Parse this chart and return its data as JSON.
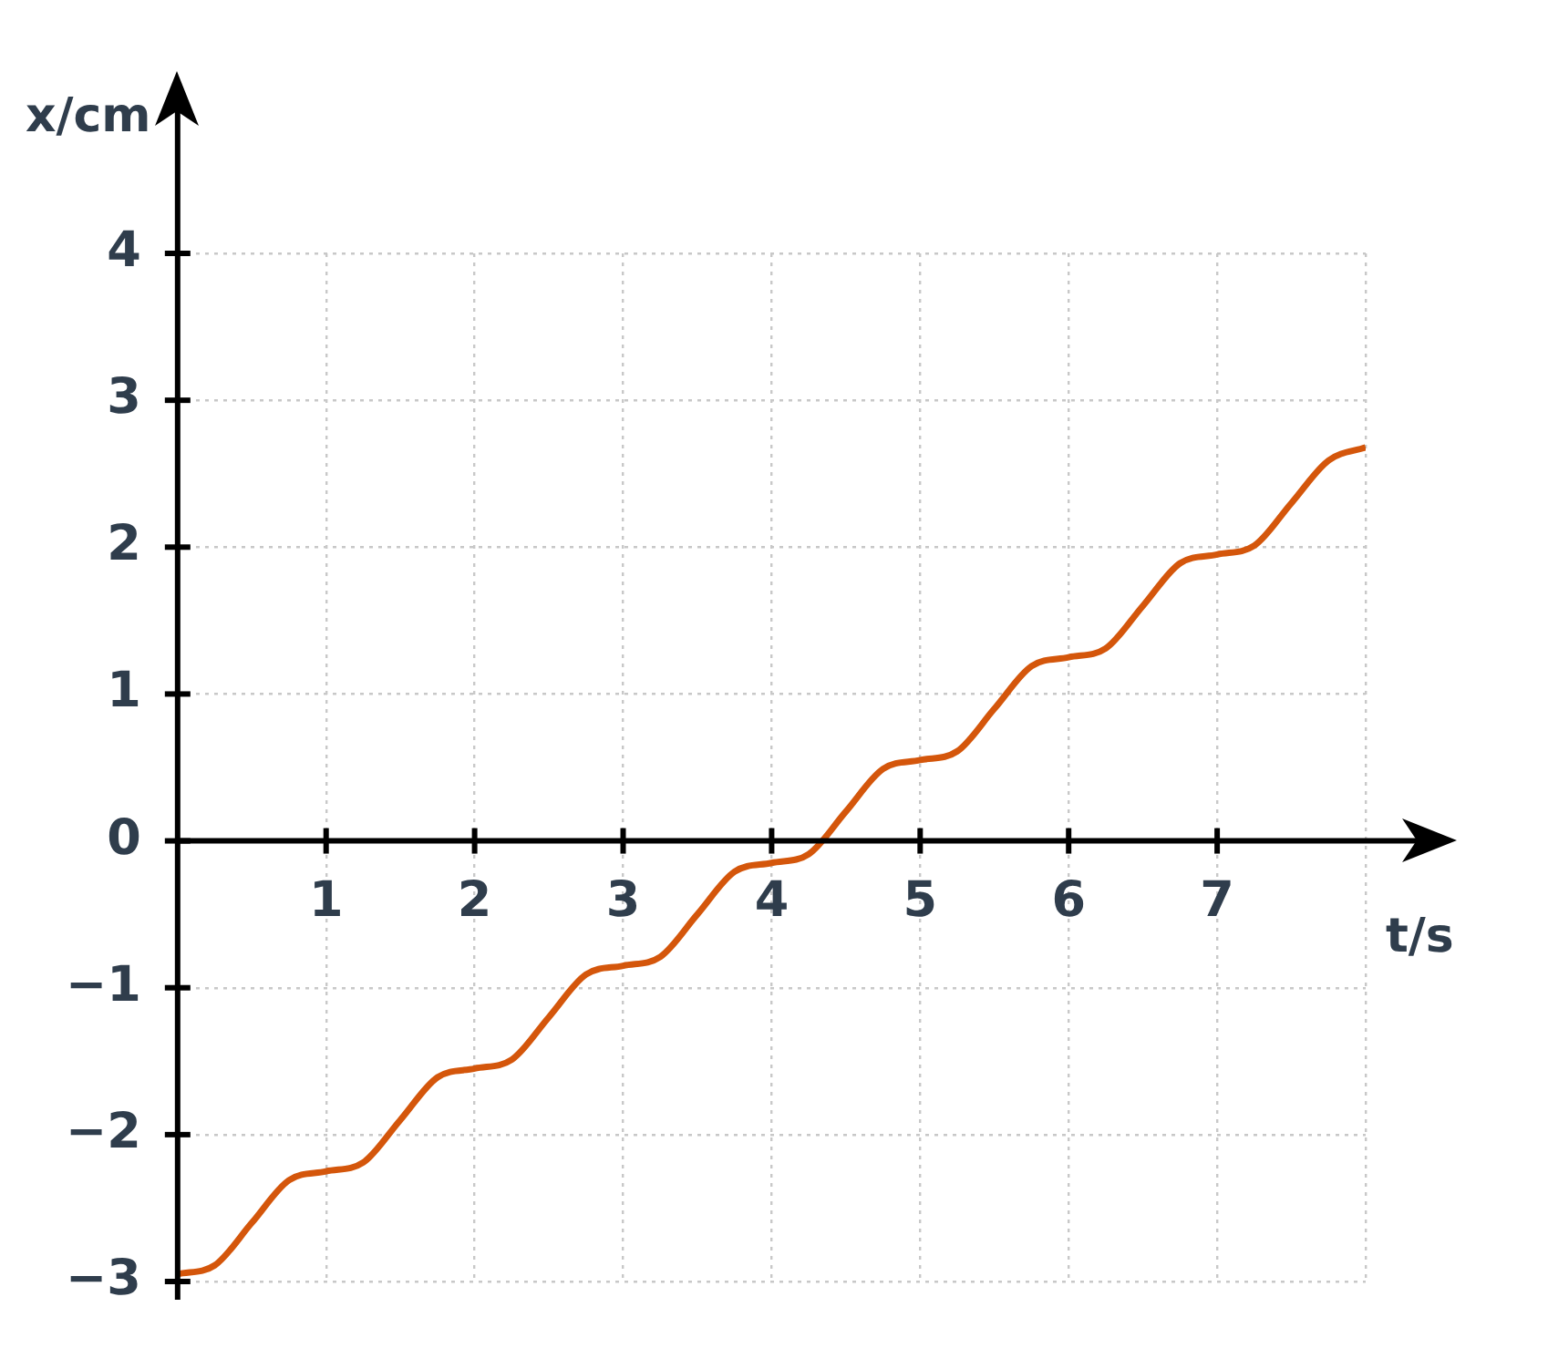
{
  "chart_data": {
    "type": "line",
    "xlabel": "t/s",
    "ylabel": "x/cm",
    "x": [
      0,
      0.25,
      0.5,
      0.75,
      1,
      1.25,
      1.5,
      1.75,
      2,
      2.25,
      2.5,
      2.75,
      3,
      3.25,
      3.5,
      3.75,
      4,
      4.25,
      4.5,
      4.75,
      5,
      5.25,
      5.5,
      5.75,
      6,
      6.25,
      6.5,
      6.75,
      7,
      7.25,
      7.5,
      7.75,
      8
    ],
    "series": [
      {
        "color": "#d4560b",
        "values": [
          -2.95,
          -2.89,
          -2.6,
          -2.31,
          -2.25,
          -2.19,
          -1.9,
          -1.61,
          -1.55,
          -1.49,
          -1.2,
          -0.91,
          -0.85,
          -0.79,
          -0.5,
          -0.21,
          -0.15,
          -0.09,
          0.2,
          0.49,
          0.55,
          0.61,
          0.9,
          1.19,
          1.25,
          1.31,
          1.6,
          1.89,
          1.95,
          2.01,
          2.3,
          2.59,
          2.68
        ]
      }
    ],
    "xlim": [
      0,
      8
    ],
    "ylim": [
      -3,
      4
    ],
    "xticks": [
      {
        "value": 0,
        "label": null
      },
      1,
      2,
      3,
      4,
      5,
      6,
      7,
      {
        "value": 8,
        "label": null
      }
    ],
    "yticks": [
      -3,
      -2,
      -1,
      0,
      1,
      2,
      3,
      4
    ],
    "grid": true,
    "legend": false,
    "marker": "none",
    "line_style": "solid"
  }
}
